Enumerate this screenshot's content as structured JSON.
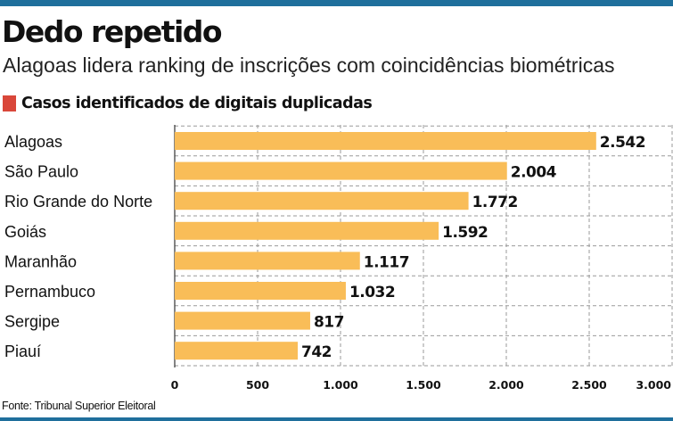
{
  "header": {
    "title": "Dedo repetido",
    "subtitle": "Alagoas lidera ranking de inscrições com coincidências biométricas",
    "section_label": "Casos identificados de digitais duplicadas"
  },
  "footer": {
    "source": "Fonte: Tribunal Superior Eleitoral"
  },
  "colors": {
    "bar": "#f9bd58",
    "marker": "#d9473a",
    "rule": "#1f6f9c",
    "grid": "#9a9a9a"
  },
  "chart_data": {
    "type": "bar",
    "orientation": "horizontal",
    "categories": [
      "Alagoas",
      "São Paulo",
      "Rio Grande do Norte",
      "Goiás",
      "Maranhão",
      "Pernambuco",
      "Sergipe",
      "Piauí"
    ],
    "values": [
      2542,
      2004,
      1772,
      1592,
      1117,
      1032,
      817,
      742
    ],
    "value_labels": [
      "2.542",
      "2.004",
      "1.772",
      "1.592",
      "1.117",
      "1.032",
      "817",
      "742"
    ],
    "xlim": [
      0,
      3000
    ],
    "xticks": [
      0,
      500,
      1000,
      1500,
      2000,
      2500,
      3000
    ],
    "xtick_labels": [
      "0",
      "500",
      "1.000",
      "1.500",
      "2.000",
      "2.500",
      "3.000"
    ],
    "grid": "vertical dashed",
    "legend": "none"
  }
}
